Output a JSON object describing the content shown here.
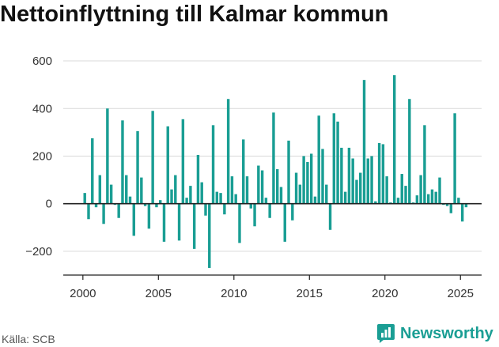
{
  "title": "Nettoinflyttning till Kalmar kommun",
  "source": "Källa: SCB",
  "brand": {
    "name": "Newsworthy",
    "icon": "newsworthy-logo-icon",
    "color": "#1a9e94"
  },
  "chart_data": {
    "type": "bar",
    "title": "Nettoinflyttning till Kalmar kommun",
    "xlabel": "",
    "ylabel": "",
    "color": "#1a9e94",
    "ylim": [
      -300,
      650
    ],
    "yticks": [
      -200,
      0,
      200,
      400,
      600
    ],
    "ytick_labels": [
      "−200",
      "0",
      "200",
      "400",
      "600"
    ],
    "xlim": [
      1998.7,
      2026.4
    ],
    "xticks": [
      2000,
      2005,
      2010,
      2015,
      2020,
      2025
    ],
    "xtick_labels": [
      "2000",
      "2005",
      "2010",
      "2015",
      "2020",
      "2025"
    ],
    "grid": "horizontal",
    "values": [
      45,
      -65,
      275,
      -15,
      120,
      -85,
      400,
      80,
      -5,
      -60,
      350,
      120,
      30,
      -135,
      305,
      110,
      -10,
      -105,
      390,
      -15,
      15,
      -160,
      325,
      60,
      120,
      -155,
      355,
      25,
      75,
      -190,
      205,
      90,
      -50,
      -270,
      330,
      50,
      45,
      -45,
      440,
      115,
      40,
      -165,
      270,
      115,
      -20,
      -95,
      160,
      140,
      25,
      -60,
      383,
      145,
      70,
      -160,
      265,
      -70,
      130,
      80,
      200,
      175,
      210,
      30,
      370,
      230,
      80,
      -110,
      380,
      345,
      235,
      50,
      235,
      190,
      100,
      130,
      520,
      190,
      200,
      10,
      255,
      250,
      115,
      5,
      540,
      25,
      125,
      75,
      440,
      5,
      35,
      120,
      330,
      40,
      60,
      50,
      110,
      -5,
      -10,
      -40,
      380,
      25,
      -75,
      -15
    ]
  }
}
